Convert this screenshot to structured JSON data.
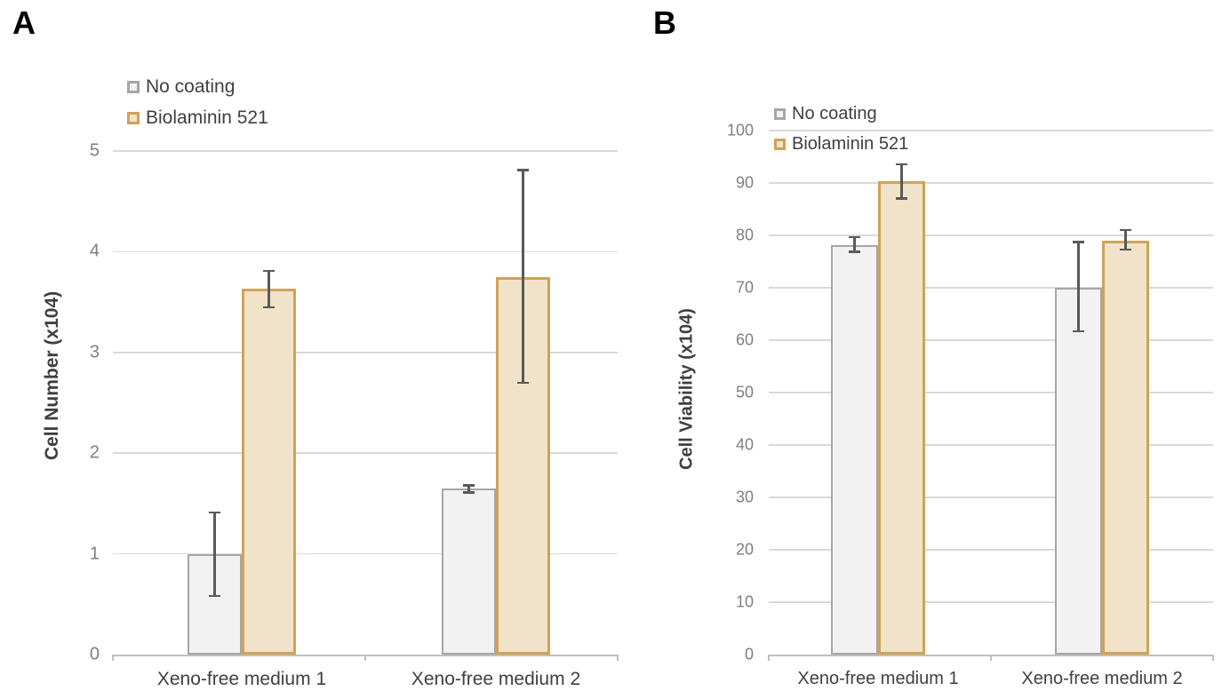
{
  "page": {
    "background": "#ffffff"
  },
  "panels": [
    {
      "letter": "A"
    },
    {
      "letter": "B"
    }
  ],
  "colors": {
    "error_bar": "#595959",
    "gridline": "#d9d9d9",
    "axis_line": "#bfbfbf",
    "tick_label": "#7f7f7f",
    "category_label": "#404040",
    "axis_title": "#3f3f3f",
    "no_coating_fill": "#f2f2f2",
    "no_coating_border": "#a6a6a6",
    "biolaminin_fill": "#f0e3c9",
    "biolaminin_border": "#d0a258"
  },
  "chart_data": [
    {
      "type": "bar",
      "panel": "A",
      "title": "",
      "xlabel": "",
      "ylabel": "Cell Number (x104)",
      "categories": [
        "Xeno-free medium 1",
        "Xeno-free medium 2"
      ],
      "series": [
        {
          "name": "No coating",
          "values": [
            1.0,
            1.65
          ],
          "error_ranges": [
            [
              0.58,
              1.41
            ],
            [
              1.61,
              1.68
            ]
          ],
          "fill": "#f2f2f2",
          "border": "#a6a6a6"
        },
        {
          "name": "Biolaminin 521",
          "values": [
            3.63,
            3.75
          ],
          "error_ranges": [
            [
              3.45,
              3.81
            ],
            [
              2.7,
              4.81
            ]
          ],
          "fill": "#f0e3c9",
          "border": "#d0a258"
        }
      ],
      "ylim": [
        0,
        5
      ],
      "ytick_step": 1,
      "grid": true,
      "legend_position": "top-left-inside"
    },
    {
      "type": "bar",
      "panel": "B",
      "title": "",
      "xlabel": "",
      "ylabel": "Cell Viability (x104)",
      "categories": [
        "Xeno-free medium 1",
        "Xeno-free medium 2"
      ],
      "series": [
        {
          "name": "No coating",
          "values": [
            78.2,
            70.0
          ],
          "error_ranges": [
            [
              76.9,
              79.7
            ],
            [
              61.7,
              78.7
            ]
          ],
          "fill": "#f2f2f2",
          "border": "#a6a6a6"
        },
        {
          "name": "Biolaminin 521",
          "values": [
            90.4,
            79.0
          ],
          "error_ranges": [
            [
              87.0,
              93.6
            ],
            [
              77.3,
              81.0
            ]
          ],
          "fill": "#f0e3c9",
          "border": "#d0a258"
        }
      ],
      "ylim": [
        0,
        100
      ],
      "ytick_step": 10,
      "grid": true,
      "legend_position": "top-left-inside"
    }
  ]
}
